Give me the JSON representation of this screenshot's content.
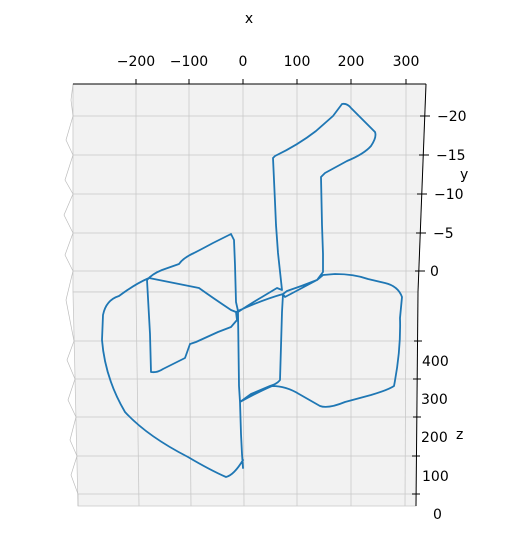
{
  "chart_data": {
    "type": "line3d",
    "title": "",
    "xlabel": "x",
    "ylabel": "y",
    "zlabel": "z",
    "x_ticks": [
      "−200",
      "−100",
      "0",
      "100",
      "200",
      "300"
    ],
    "y_ticks": [
      "−20",
      "−15",
      "−10",
      "−5",
      "0"
    ],
    "z_ticks": [
      "400",
      "300",
      "200",
      "100",
      "0"
    ],
    "xlim": [
      -300,
      320
    ],
    "ylim": [
      -24,
      4
    ],
    "zlim": [
      0,
      470
    ],
    "grid": true,
    "legend": "none",
    "line_color": "#1f77b4",
    "pane_color": "#f2f2f2",
    "grid_color": "#c8c8c8"
  }
}
